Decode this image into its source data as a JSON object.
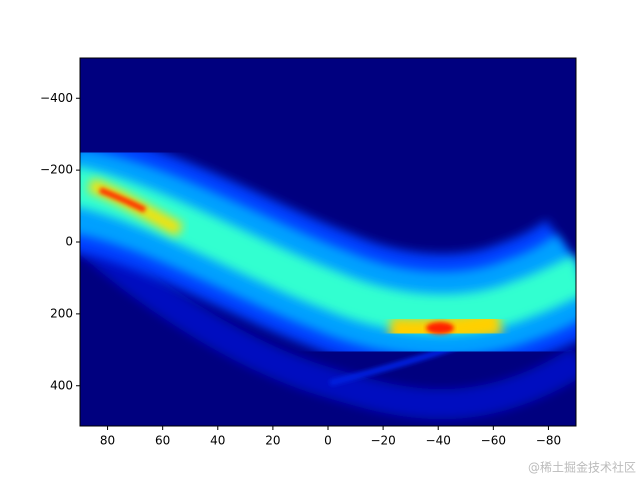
{
  "chart_data": {
    "type": "heatmap",
    "colormap": "jet",
    "xlim": [
      90,
      -90
    ],
    "xticks": [
      80,
      60,
      40,
      20,
      0,
      {
        "value": -20,
        "label": "−20"
      },
      {
        "value": -40,
        "label": "−40"
      },
      {
        "value": -60,
        "label": "−60"
      },
      {
        "value": -80,
        "label": "−80"
      }
    ],
    "ylim": [
      512,
      -512
    ],
    "yticks": [
      {
        "value": -400,
        "label": "−400"
      },
      {
        "value": -200,
        "label": "−200"
      },
      0,
      200,
      400
    ],
    "watermark": "@稀土掘金技术社区"
  }
}
